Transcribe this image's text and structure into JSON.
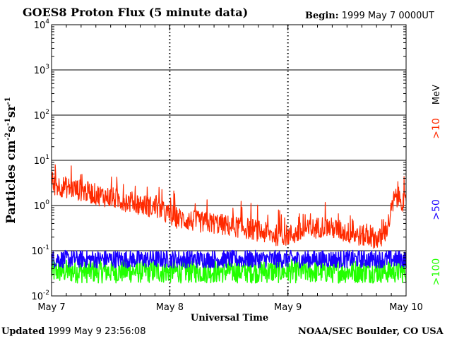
{
  "header": {
    "title": "GOES8 Proton Flux (5 minute data)",
    "begin_label": "Begin:",
    "begin_value": "1999 May 7 0000UT"
  },
  "footer": {
    "updated_label": "Updated",
    "updated_value": "1999 May  9 23:56:08",
    "org": "NOAA/SEC Boulder, CO USA"
  },
  "colors": {
    "red": "#ff2a00",
    "blue": "#1a00ff",
    "green": "#22ff00"
  },
  "chart_data": {
    "type": "line",
    "title": "GOES8 Proton Flux (5 minute data)",
    "xlabel": "Universal Time",
    "ylabel": "Particles cm⁻²s⁻¹sr⁻¹",
    "yscale": "log",
    "ylim": [
      0.01,
      10000
    ],
    "xlim_days": [
      0,
      3
    ],
    "x_ticks": [
      {
        "day": 0,
        "label": "May 7"
      },
      {
        "day": 1,
        "label": "May 8"
      },
      {
        "day": 2,
        "label": "May 9"
      },
      {
        "day": 3,
        "label": "May 10"
      }
    ],
    "y_ticks": [
      {
        "value": 0.01,
        "base": "10",
        "exp": "-2"
      },
      {
        "value": 0.1,
        "base": "10",
        "exp": "-1"
      },
      {
        "value": 1,
        "base": "10",
        "exp": "0"
      },
      {
        "value": 10,
        "base": "10",
        "exp": "1"
      },
      {
        "value": 100,
        "base": "10",
        "exp": "2"
      },
      {
        "value": 1000,
        "base": "10",
        "exp": "3"
      },
      {
        "value": 10000,
        "base": "10",
        "exp": "4"
      }
    ],
    "series": [
      {
        "name": ">10 MeV",
        "label": ">10",
        "unit": "MeV",
        "color": "#ff2a00",
        "x_days": [
          0,
          0.1,
          0.2,
          0.3,
          0.4,
          0.5,
          0.6,
          0.7,
          0.8,
          0.9,
          1.0,
          1.1,
          1.2,
          1.3,
          1.4,
          1.5,
          1.6,
          1.7,
          1.8,
          1.9,
          2.0,
          2.1,
          2.2,
          2.3,
          2.4,
          2.5,
          2.6,
          2.7,
          2.8,
          2.85,
          2.9,
          2.95,
          3.0
        ],
        "values": [
          2.9,
          2.6,
          2.3,
          2.0,
          1.7,
          1.5,
          1.3,
          1.15,
          1.0,
          0.85,
          0.6,
          0.5,
          0.45,
          0.42,
          0.4,
          0.35,
          0.33,
          0.3,
          0.25,
          0.22,
          0.22,
          0.25,
          0.3,
          0.35,
          0.3,
          0.25,
          0.22,
          0.2,
          0.18,
          0.4,
          1.4,
          1.5,
          1.0
        ]
      },
      {
        "name": ">50 MeV",
        "label": ">50",
        "unit": "",
        "color": "#1a00ff",
        "x_days": [
          0,
          0.5,
          1.0,
          1.5,
          2.0,
          2.5,
          3.0
        ],
        "values": [
          0.065,
          0.065,
          0.065,
          0.065,
          0.065,
          0.065,
          0.065
        ]
      },
      {
        "name": ">100 MeV",
        "label": ">100",
        "unit": "",
        "color": "#22ff00",
        "x_days": [
          0,
          0.5,
          1.0,
          1.5,
          2.0,
          2.5,
          3.0
        ],
        "values": [
          0.035,
          0.035,
          0.035,
          0.035,
          0.035,
          0.035,
          0.035
        ]
      }
    ]
  }
}
